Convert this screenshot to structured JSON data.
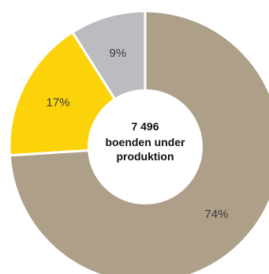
{
  "chart_data": {
    "type": "pie",
    "variant": "donut",
    "categories": [
      "",
      "",
      ""
    ],
    "values": [
      74,
      17,
      9
    ],
    "value_labels": [
      "74%",
      "17%",
      "9%"
    ],
    "colors": [
      "#ae9f88",
      "#fcd20a",
      "#bbbcbf"
    ],
    "center_label": {
      "value": "7 496",
      "line1": "boenden under",
      "line2": "produktion"
    },
    "title": "",
    "legend": "none"
  }
}
